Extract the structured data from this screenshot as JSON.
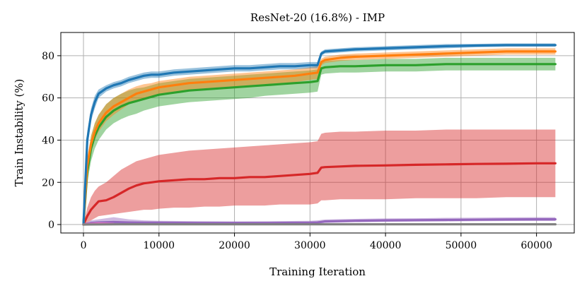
{
  "chart_data": {
    "type": "line",
    "title": "ResNet-20 (16.8%) - IMP",
    "xlabel": "Training Iteration",
    "ylabel": "Train Instability (%)",
    "xlim": [
      -3000,
      65000
    ],
    "ylim": [
      -4,
      91
    ],
    "xticks": [
      0,
      10000,
      20000,
      30000,
      40000,
      50000,
      60000
    ],
    "yticks": [
      0,
      20,
      40,
      60,
      80
    ],
    "grid": true,
    "legend": "none",
    "series": [
      {
        "color": "#1f77b4",
        "x": [
          0,
          500,
          1000,
          1500,
          2000,
          3000,
          4000,
          5000,
          6000,
          7000,
          8000,
          9000,
          10000,
          12000,
          14000,
          16000,
          18000,
          20000,
          22000,
          24000,
          26000,
          28000,
          30000,
          31000,
          31500,
          32000,
          34000,
          36000,
          40000,
          44000,
          48000,
          52000,
          56000,
          60000,
          62500
        ],
        "y": [
          0,
          40,
          52,
          58,
          62,
          64.5,
          66,
          67,
          68.5,
          69.5,
          70.5,
          71,
          71,
          72,
          72.5,
          73,
          73.5,
          74,
          74,
          74.5,
          75,
          75,
          75.5,
          75.5,
          81,
          82,
          82.5,
          83,
          83.5,
          84,
          84.5,
          84.8,
          85,
          85,
          85
        ],
        "lower": [
          0,
          36,
          49,
          55,
          60,
          63,
          64.5,
          65.5,
          67,
          68,
          69,
          69.5,
          69.5,
          70.5,
          71,
          71.5,
          72,
          72.5,
          72.5,
          73,
          73.5,
          73.5,
          74,
          74,
          80,
          81,
          81.5,
          82,
          82.5,
          83,
          83.5,
          84,
          84.2,
          84.2,
          84.2
        ],
        "upper": [
          0,
          44,
          55,
          61,
          64,
          66,
          67.5,
          68.5,
          70,
          71,
          72,
          72.5,
          72.5,
          73.5,
          74,
          74.5,
          75,
          75.5,
          75.5,
          76,
          76.5,
          76.5,
          77,
          77,
          82,
          83,
          83.5,
          84,
          84.5,
          85,
          85.5,
          85.6,
          85.8,
          85.8,
          85.8
        ]
      },
      {
        "color": "#ff7f0e",
        "x": [
          0,
          500,
          1000,
          1500,
          2000,
          3000,
          4000,
          5000,
          6000,
          7000,
          8000,
          9000,
          10000,
          12000,
          14000,
          16000,
          18000,
          20000,
          22000,
          24000,
          26000,
          28000,
          30000,
          31000,
          31500,
          32000,
          34000,
          36000,
          40000,
          44000,
          48000,
          52000,
          56000,
          60000,
          62500
        ],
        "y": [
          0,
          28,
          38,
          44,
          48,
          53,
          56,
          58,
          60,
          62,
          63,
          64,
          65,
          66,
          67,
          67.5,
          68,
          68.5,
          69,
          69.5,
          70,
          70.5,
          71.5,
          72,
          77,
          78,
          79,
          79.5,
          80,
          80.5,
          81,
          81.5,
          82,
          82,
          82
        ],
        "lower": [
          0,
          24,
          34,
          40,
          44,
          49,
          52,
          54.5,
          57,
          59,
          60,
          61,
          62,
          63,
          64,
          64.5,
          65,
          65.5,
          66,
          66.5,
          67,
          67.5,
          68.5,
          69,
          75.5,
          76.5,
          77.5,
          78,
          78.5,
          79,
          79.5,
          80,
          80.5,
          80.5,
          80.5
        ],
        "upper": [
          0,
          32,
          42,
          48,
          52,
          57,
          60,
          62,
          64,
          65.5,
          66.5,
          67,
          68,
          69,
          70,
          70.5,
          71,
          71.5,
          72,
          72.5,
          73,
          73.5,
          74.5,
          75,
          78.5,
          79.5,
          80.5,
          81,
          81.5,
          82,
          82.5,
          83,
          83.5,
          83.5,
          83.5
        ]
      },
      {
        "color": "#2ca02c",
        "x": [
          0,
          500,
          1000,
          1500,
          2000,
          3000,
          4000,
          5000,
          6000,
          7000,
          8000,
          9000,
          10000,
          12000,
          14000,
          16000,
          18000,
          20000,
          22000,
          24000,
          26000,
          28000,
          30000,
          31000,
          31500,
          32000,
          34000,
          36000,
          40000,
          44000,
          48000,
          52000,
          56000,
          60000,
          62500
        ],
        "y": [
          0,
          25,
          36,
          42,
          46,
          51,
          54,
          56,
          57.5,
          58.5,
          59.5,
          60.5,
          61.5,
          62.5,
          63.5,
          64,
          64.5,
          65,
          65.5,
          66,
          66.5,
          67,
          67.5,
          68,
          74,
          74.5,
          75,
          75,
          75.5,
          75.5,
          76,
          76,
          76,
          76,
          76
        ],
        "lower": [
          0,
          20,
          30,
          36,
          40,
          45,
          48,
          50,
          51.5,
          52.5,
          54,
          55,
          56,
          57,
          58,
          58.5,
          59,
          59.5,
          60,
          61,
          61.5,
          62,
          62.5,
          63,
          71,
          71.5,
          72,
          72,
          72.5,
          72.5,
          73,
          73,
          73,
          73,
          73
        ],
        "upper": [
          0,
          30,
          42,
          48,
          52,
          57,
          60,
          62,
          63.5,
          64.5,
          65,
          66,
          67,
          68,
          69,
          69.5,
          70,
          70.5,
          71,
          71.5,
          72,
          72.5,
          73,
          73.5,
          77,
          77.5,
          78,
          78,
          78.5,
          78.5,
          79,
          79,
          79,
          79,
          79
        ]
      },
      {
        "color": "#d62728",
        "x": [
          0,
          500,
          1000,
          1500,
          2000,
          3000,
          4000,
          5000,
          6000,
          7000,
          8000,
          9000,
          10000,
          12000,
          14000,
          16000,
          18000,
          20000,
          22000,
          24000,
          26000,
          28000,
          30000,
          31000,
          31500,
          32000,
          34000,
          36000,
          40000,
          44000,
          48000,
          52000,
          56000,
          60000,
          62500
        ],
        "y": [
          0,
          4,
          7,
          9,
          11,
          11.5,
          13,
          15,
          17,
          18.5,
          19.5,
          20,
          20.5,
          21,
          21.5,
          21.5,
          22,
          22,
          22.5,
          22.5,
          23,
          23.5,
          24,
          24.5,
          27,
          27.2,
          27.5,
          27.8,
          28,
          28.3,
          28.5,
          28.7,
          28.8,
          29,
          29
        ],
        "lower": [
          0,
          1,
          2,
          3,
          4,
          4.5,
          5,
          5.5,
          6,
          6.5,
          7,
          7,
          7.5,
          8,
          8,
          8.5,
          8.5,
          9,
          9,
          9,
          9.5,
          9.5,
          9.5,
          10,
          11.5,
          11.5,
          12,
          12,
          12,
          12.5,
          12.5,
          12.5,
          13,
          13,
          13
        ],
        "upper": [
          0,
          8,
          13,
          16,
          18,
          20,
          23,
          26,
          28,
          30,
          31,
          32,
          33,
          34,
          35,
          35.5,
          36,
          36.5,
          37,
          37.5,
          38,
          38.5,
          39,
          39.5,
          43,
          43.5,
          44,
          44,
          44.5,
          44.5,
          45,
          45,
          45,
          45,
          45
        ]
      },
      {
        "color": "#9467bd",
        "x": [
          0,
          1000,
          2000,
          4000,
          6000,
          8000,
          10000,
          15000,
          20000,
          25000,
          30000,
          31000,
          32000,
          36000,
          40000,
          44000,
          48000,
          52000,
          56000,
          60000,
          62500
        ],
        "y": [
          0,
          0.8,
          1,
          1.2,
          1,
          0.9,
          0.9,
          0.8,
          0.8,
          0.8,
          0.9,
          1,
          1.5,
          1.8,
          2,
          2.1,
          2.2,
          2.3,
          2.4,
          2.5,
          2.5
        ],
        "lower": [
          0,
          0.2,
          0.3,
          0.4,
          0.3,
          0.3,
          0.3,
          0.2,
          0.2,
          0.2,
          0.3,
          0.4,
          0.8,
          1.1,
          1.3,
          1.4,
          1.5,
          1.6,
          1.7,
          1.7,
          1.7
        ],
        "upper": [
          0,
          2,
          2.5,
          3.5,
          2.5,
          2,
          1.8,
          1.6,
          1.5,
          1.6,
          1.8,
          2,
          2.4,
          2.7,
          2.9,
          3,
          3.2,
          3.3,
          3.4,
          3.5,
          3.5
        ]
      },
      {
        "color": "#e377c2",
        "x": [
          0,
          1000,
          2000,
          3000,
          3500,
          4000
        ],
        "y": [
          0,
          0.3,
          0.5,
          0.4,
          0.3,
          0.2
        ],
        "lower": [
          0,
          0,
          0,
          0,
          0,
          0
        ],
        "upper": [
          0,
          0.8,
          1,
          0.9,
          0.7,
          0.5
        ]
      },
      {
        "color": "#7f7f7f",
        "x": [
          0,
          5000,
          10000,
          20000,
          30000,
          40000,
          50000,
          60000,
          62500
        ],
        "y": [
          0,
          0.1,
          0.1,
          0.1,
          0.1,
          0.1,
          0.1,
          0.1,
          0.1
        ],
        "lower": [
          0,
          0,
          0,
          0,
          0,
          0,
          0,
          0,
          0
        ],
        "upper": [
          0,
          0.3,
          0.3,
          0.3,
          0.3,
          0.3,
          0.3,
          0.3,
          0.3
        ]
      }
    ]
  }
}
